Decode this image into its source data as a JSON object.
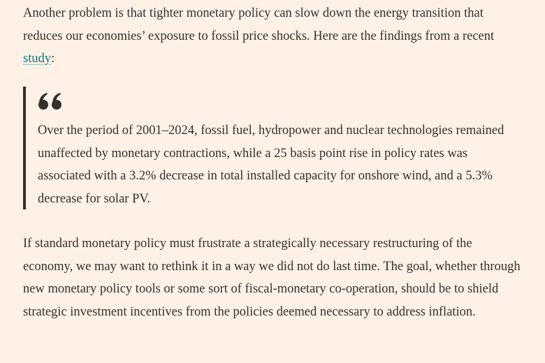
{
  "article": {
    "paragraph1": {
      "text_before_link": "Another problem is that tighter monetary policy can slow down the energy transition that reduces our economies’ exposure to fossil price shocks. Here are the findings from a recent ",
      "link_text": "study",
      "text_after_link": ":"
    },
    "blockquote": {
      "icon": "quotation-mark-icon",
      "text": "Over the period of 2001–2024, fossil fuel, hydropower and nuclear technologies remained unaffected by monetary contractions, while a 25 basis point rise in policy rates was associated with a 3.2% decrease in total installed capacity for onshore wind, and a 5.3% decrease for solar PV."
    },
    "paragraph2": {
      "text": "If standard monetary policy must frustrate a strategically necessary restructuring of the economy, we may want to rethink it in a way we did not do last time. The goal, whether through new monetary policy tools or some sort of fiscal-monetary co-operation, should be to shield strategic investment incentives from the policies deemed necessary to address inflation."
    }
  },
  "colors": {
    "background": "#fff1e6",
    "text": "#33302e",
    "link": "#0d7680"
  }
}
